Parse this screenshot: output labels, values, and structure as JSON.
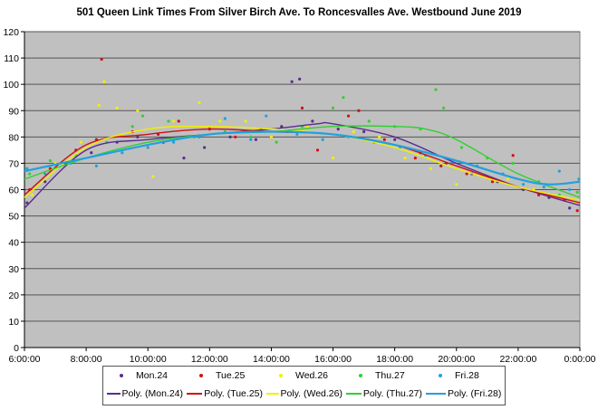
{
  "chart_data": {
    "type": "scatter",
    "title": "501 Queen Link Times From Silver Birch Ave. To Roncesvalles Ave. Westbound June 2019",
    "xlabel": "",
    "ylabel": "",
    "xlim": [
      "6:00:00",
      "0:00:00"
    ],
    "ylim": [
      0,
      120
    ],
    "x_ticks": [
      "6:00:00",
      "8:00:00",
      "10:00:00",
      "12:00:00",
      "14:00:00",
      "16:00:00",
      "18:00:00",
      "20:00:00",
      "22:00:00",
      "0:00:00"
    ],
    "y_ticks": [
      0,
      10,
      20,
      30,
      40,
      50,
      60,
      70,
      80,
      90,
      100,
      110,
      120
    ],
    "grid": true,
    "legend": "bottom",
    "background": "#c0c0c0",
    "series": [
      {
        "name": "Mon.24",
        "color": "#5b2c8f",
        "points": [
          [
            "6:05",
            55
          ],
          [
            "6:40",
            63
          ],
          [
            "7:20",
            70
          ],
          [
            "8:10",
            74
          ],
          [
            "9:00",
            78
          ],
          [
            "9:40",
            80
          ],
          [
            "10:30",
            78
          ],
          [
            "11:10",
            72
          ],
          [
            "11:50",
            76
          ],
          [
            "12:40",
            80
          ],
          [
            "13:30",
            79
          ],
          [
            "14:20",
            84
          ],
          [
            "14:40",
            101
          ],
          [
            "14:55",
            102
          ],
          [
            "15:20",
            86
          ],
          [
            "16:10",
            83
          ],
          [
            "17:00",
            82
          ],
          [
            "18:00",
            79
          ],
          [
            "18:50",
            74
          ],
          [
            "19:40",
            70
          ],
          [
            "20:30",
            66
          ],
          [
            "21:20",
            63
          ],
          [
            "22:10",
            60
          ],
          [
            "23:00",
            57
          ],
          [
            "23:40",
            53
          ]
        ]
      },
      {
        "name": "Tue.25",
        "color": "#d01010",
        "points": [
          [
            "6:10",
            60
          ],
          [
            "6:50",
            68
          ],
          [
            "7:40",
            75
          ],
          [
            "8:30",
            109.5
          ],
          [
            "8:20",
            79
          ],
          [
            "9:30",
            82
          ],
          [
            "10:20",
            81
          ],
          [
            "11:00",
            86
          ],
          [
            "12:00",
            83
          ],
          [
            "12:50",
            80
          ],
          [
            "13:40",
            83
          ],
          [
            "14:30",
            82
          ],
          [
            "15:00",
            91
          ],
          [
            "15:30",
            75
          ],
          [
            "16:30",
            88
          ],
          [
            "16:50",
            90
          ],
          [
            "17:40",
            79
          ],
          [
            "18:40",
            72
          ],
          [
            "19:30",
            69
          ],
          [
            "20:20",
            66
          ],
          [
            "21:10",
            63
          ],
          [
            "21:50",
            73
          ],
          [
            "22:40",
            58
          ],
          [
            "23:30",
            56
          ],
          [
            "23:55",
            52
          ]
        ]
      },
      {
        "name": "Wed.26",
        "color": "#f0f000",
        "points": [
          [
            "6:15",
            58
          ],
          [
            "7:00",
            70
          ],
          [
            "7:50",
            78
          ],
          [
            "8:25",
            92
          ],
          [
            "8:35",
            101
          ],
          [
            "9:00",
            91
          ],
          [
            "9:40",
            90
          ],
          [
            "10:10",
            65
          ],
          [
            "10:50",
            86
          ],
          [
            "11:40",
            93
          ],
          [
            "12:20",
            86
          ],
          [
            "13:10",
            86
          ],
          [
            "14:00",
            80
          ],
          [
            "15:10",
            84
          ],
          [
            "16:00",
            72
          ],
          [
            "16:40",
            82
          ],
          [
            "17:30",
            80
          ],
          [
            "18:20",
            72
          ],
          [
            "19:10",
            68
          ],
          [
            "20:00",
            62
          ],
          [
            "20:50",
            66
          ],
          [
            "21:40",
            64
          ],
          [
            "22:30",
            60
          ],
          [
            "23:10",
            57
          ],
          [
            "23:50",
            55
          ]
        ]
      },
      {
        "name": "Thu.27",
        "color": "#30d030",
        "points": [
          [
            "6:10",
            66
          ],
          [
            "6:50",
            71
          ],
          [
            "7:40",
            73
          ],
          [
            "8:40",
            78
          ],
          [
            "9:30",
            84
          ],
          [
            "9:50",
            88
          ],
          [
            "10:40",
            86
          ],
          [
            "11:30",
            80
          ],
          [
            "12:30",
            82
          ],
          [
            "13:20",
            80
          ],
          [
            "14:10",
            78
          ],
          [
            "15:00",
            84
          ],
          [
            "16:00",
            91
          ],
          [
            "16:20",
            95
          ],
          [
            "17:10",
            86
          ],
          [
            "18:00",
            84
          ],
          [
            "18:50",
            83
          ],
          [
            "19:20",
            98
          ],
          [
            "19:35",
            91
          ],
          [
            "20:10",
            76
          ],
          [
            "21:00",
            72
          ],
          [
            "21:50",
            70
          ],
          [
            "22:40",
            63
          ],
          [
            "23:20",
            58
          ],
          [
            "23:55",
            59
          ]
        ]
      },
      {
        "name": "Fri.28",
        "color": "#20a0e0",
        "points": [
          [
            "6:05",
            68
          ],
          [
            "6:40",
            66
          ],
          [
            "7:30",
            70
          ],
          [
            "8:20",
            69
          ],
          [
            "9:10",
            74
          ],
          [
            "10:00",
            76
          ],
          [
            "10:50",
            78
          ],
          [
            "11:40",
            80
          ],
          [
            "12:30",
            87
          ],
          [
            "13:20",
            79
          ],
          [
            "13:50",
            88
          ],
          [
            "14:50",
            81
          ],
          [
            "15:40",
            79
          ],
          [
            "16:30",
            80
          ],
          [
            "17:20",
            78
          ],
          [
            "18:10",
            76
          ],
          [
            "19:00",
            73
          ],
          [
            "19:50",
            70
          ],
          [
            "20:40",
            69
          ],
          [
            "21:30",
            66
          ],
          [
            "22:10",
            62
          ],
          [
            "22:50",
            61
          ],
          [
            "23:20",
            67
          ],
          [
            "23:40",
            60
          ],
          [
            "23:58",
            64
          ]
        ]
      }
    ],
    "trendlines": [
      {
        "name": "Poly. (Mon.24)",
        "color": "#5b2c8f",
        "points": [
          [
            "6:00",
            53
          ],
          [
            "8:00",
            75
          ],
          [
            "10:00",
            79
          ],
          [
            "12:00",
            81
          ],
          [
            "14:00",
            83
          ],
          [
            "15:30",
            85
          ],
          [
            "16:00",
            85
          ],
          [
            "18:00",
            80
          ],
          [
            "20:00",
            70
          ],
          [
            "22:00",
            61
          ],
          [
            "0:00",
            54
          ]
        ]
      },
      {
        "name": "Poly. (Tue.25)",
        "color": "#d01010",
        "points": [
          [
            "6:00",
            58
          ],
          [
            "8:00",
            77
          ],
          [
            "10:00",
            81
          ],
          [
            "12:00",
            83
          ],
          [
            "14:00",
            82
          ],
          [
            "16:00",
            81
          ],
          [
            "18:00",
            77
          ],
          [
            "20:00",
            69
          ],
          [
            "22:00",
            61
          ],
          [
            "0:00",
            55
          ]
        ]
      },
      {
        "name": "Poly. (Wed.26)",
        "color": "#f0f000",
        "points": [
          [
            "6:00",
            57
          ],
          [
            "8:00",
            76
          ],
          [
            "10:00",
            83
          ],
          [
            "12:00",
            84
          ],
          [
            "14:00",
            83
          ],
          [
            "16:00",
            81
          ],
          [
            "18:00",
            76
          ],
          [
            "20:00",
            68
          ],
          [
            "22:00",
            61
          ],
          [
            "0:00",
            56
          ]
        ]
      },
      {
        "name": "Poly. (Thu.27)",
        "color": "#30d030",
        "points": [
          [
            "6:00",
            64
          ],
          [
            "8:00",
            72
          ],
          [
            "10:00",
            78
          ],
          [
            "12:00",
            81
          ],
          [
            "14:00",
            82
          ],
          [
            "16:00",
            84
          ],
          [
            "18:00",
            84
          ],
          [
            "19:00",
            83
          ],
          [
            "20:00",
            79
          ],
          [
            "22:00",
            66
          ],
          [
            "0:00",
            57
          ]
        ]
      },
      {
        "name": "Poly. (Fri.28)",
        "color": "#20a0e0",
        "points": [
          [
            "6:00",
            67
          ],
          [
            "8:00",
            72
          ],
          [
            "10:00",
            77
          ],
          [
            "12:00",
            81
          ],
          [
            "14:00",
            82
          ],
          [
            "16:00",
            81
          ],
          [
            "18:00",
            77
          ],
          [
            "20:00",
            71
          ],
          [
            "22:00",
            64
          ],
          [
            "23:00",
            62
          ],
          [
            "0:00",
            63
          ]
        ]
      }
    ]
  }
}
